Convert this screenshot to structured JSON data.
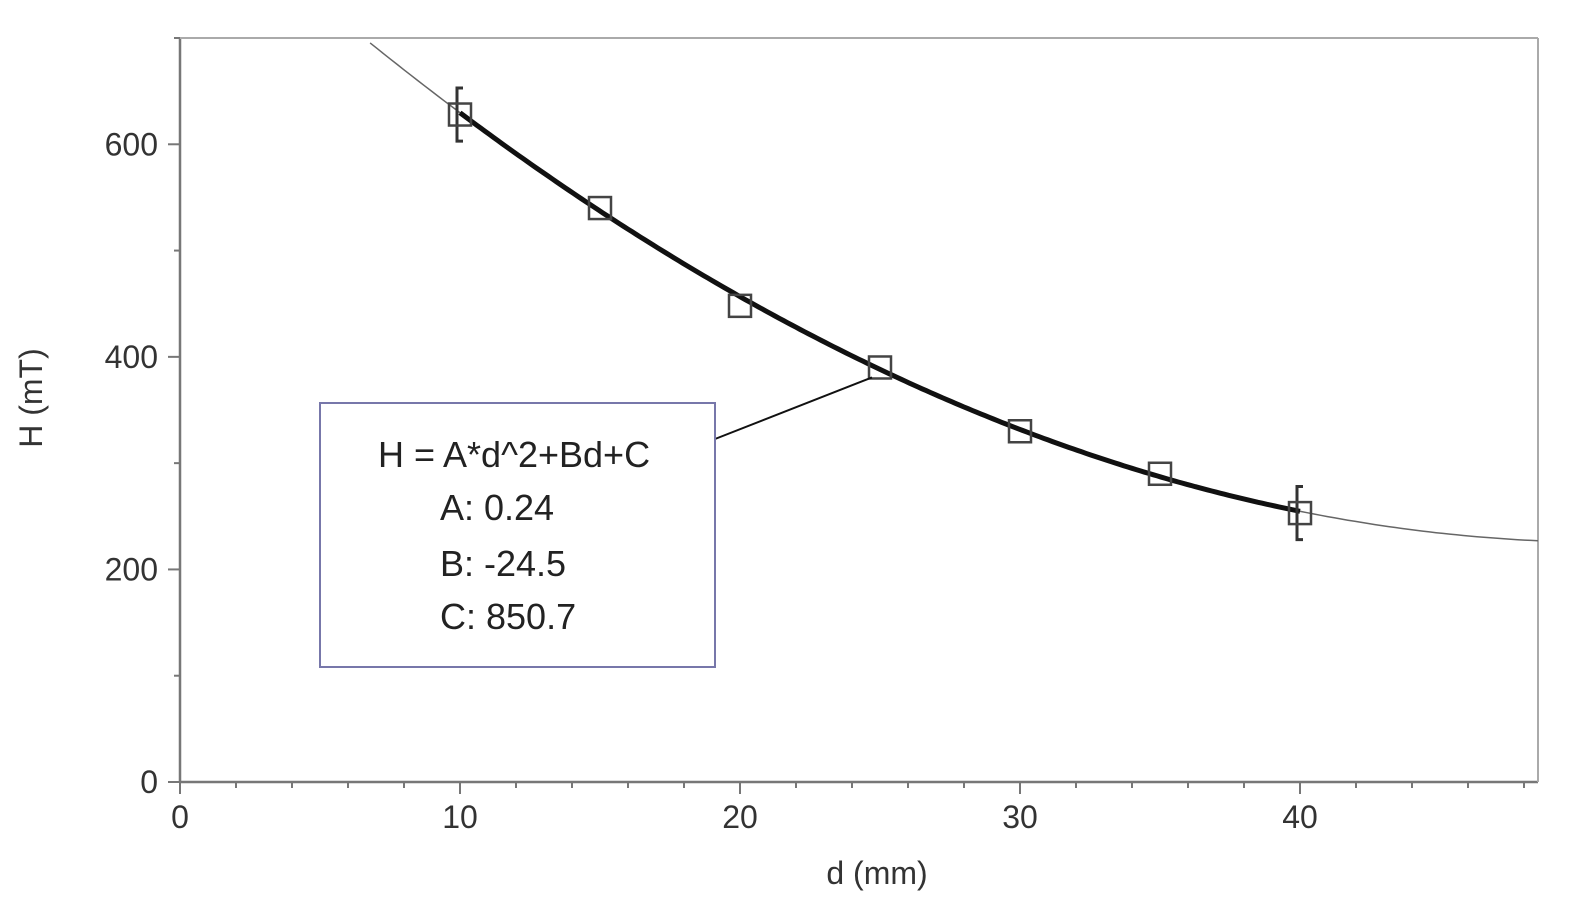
{
  "chart_data": {
    "type": "scatter",
    "xlabel": "d (mm)",
    "ylabel": "H (mT)",
    "xlim": [
      0,
      48.5
    ],
    "ylim": [
      0,
      700
    ],
    "x_ticks": [
      0,
      10,
      20,
      30,
      40
    ],
    "y_ticks": [
      0,
      200,
      400,
      600
    ],
    "x_minor_step": 2,
    "y_minor_step": 100,
    "grid": false,
    "series": [
      {
        "marker": "open-square",
        "x": [
          10,
          15,
          20,
          25,
          30,
          35,
          40
        ],
        "y": [
          628,
          540,
          448,
          390,
          330,
          290,
          253
        ],
        "error": [
          25,
          0,
          0,
          0,
          0,
          0,
          25
        ]
      }
    ],
    "fit": {
      "model": "quadratic",
      "A": 0.24,
      "B": -24.5,
      "C": 850.7,
      "fit_range": [
        10,
        40
      ]
    },
    "annotation": {
      "lines": [
        "H = A*d^2+Bd+C",
        "A: 0.24",
        "B: -24.5",
        "C: 850.7"
      ],
      "points_to_x": 25
    }
  }
}
